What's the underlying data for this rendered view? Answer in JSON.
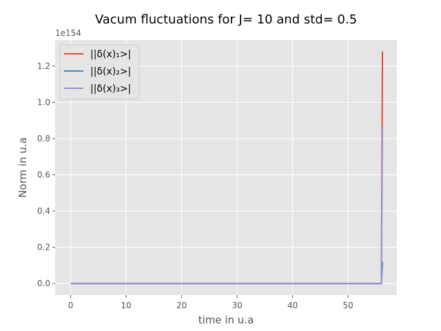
{
  "chart_data": {
    "type": "line",
    "title": "Vacum fluctuations for J= 10 and std= 0.5",
    "xlabel": "time in u.a",
    "ylabel": "Norm in u.a",
    "y_offset_label": "1e154",
    "xlim": [
      -2.8,
      58.8
    ],
    "ylim": [
      -0.064,
      1.344
    ],
    "xticks": [
      0,
      10,
      20,
      30,
      40,
      50
    ],
    "yticks": [
      0.0,
      0.2,
      0.4,
      0.6,
      0.8,
      1.0,
      1.2
    ],
    "ytick_labels": [
      "0.0",
      "0.2",
      "0.4",
      "0.6",
      "0.8",
      "1.0",
      "1.2"
    ],
    "grid": true,
    "legend_position": "upper-left",
    "series": [
      {
        "name": "||δ(x)₁>|",
        "color": "#E24A33",
        "x": [
          0,
          10,
          20,
          30,
          40,
          50,
          55,
          56,
          56.2
        ],
        "y": [
          0,
          0,
          0,
          0,
          0,
          0,
          0,
          0,
          1.28
        ]
      },
      {
        "name": "||δ(x)₂>|",
        "color": "#348ABD",
        "x": [
          0,
          10,
          20,
          30,
          40,
          50,
          55,
          56,
          56.2
        ],
        "y": [
          0,
          0,
          0,
          0,
          0,
          0,
          0,
          0,
          0.12
        ]
      },
      {
        "name": "||δ(x)₃>|",
        "color": "#988ED5",
        "x": [
          0,
          10,
          20,
          30,
          40,
          50,
          55,
          56,
          56.2
        ],
        "y": [
          0,
          0,
          0,
          0,
          0,
          0,
          0,
          0,
          0.87
        ]
      }
    ]
  }
}
